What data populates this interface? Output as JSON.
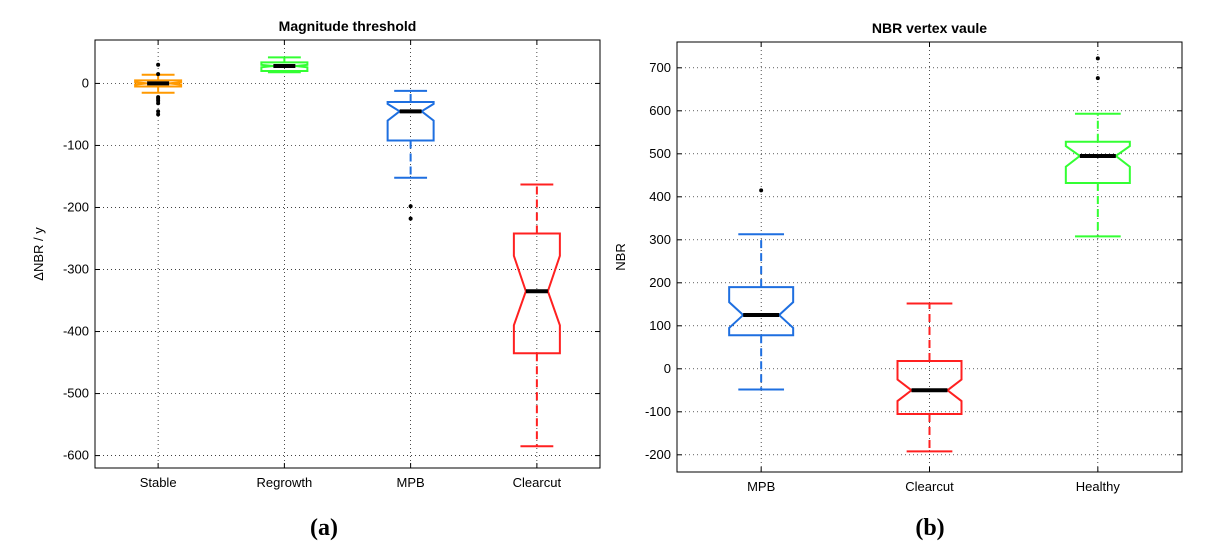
{
  "chart_data": [
    {
      "type": "boxplot",
      "panel_label": "(a)",
      "title": "Magnitude threshold",
      "xlabel": "",
      "ylabel": "ΔNBR / y",
      "ylim": [
        -620,
        70
      ],
      "yticks": [
        0,
        -100,
        -200,
        -300,
        -400,
        -500,
        -600
      ],
      "grid": true,
      "notched": true,
      "categories": [
        "Stable",
        "Regrowth",
        "MPB",
        "Clearcut"
      ],
      "boxes": [
        {
          "name": "Stable",
          "color": "#ff9900",
          "q1": -5,
          "median": 0,
          "q3": 5,
          "whisker_low": -15,
          "whisker_high": 14,
          "notch_low": -2,
          "notch_high": 2,
          "outliers": [
            30,
            15,
            -22,
            -25,
            -28,
            -32,
            -45,
            -50
          ]
        },
        {
          "name": "Regrowth",
          "color": "#33ff33",
          "q1": 20,
          "median": 28,
          "q3": 34,
          "whisker_low": 18,
          "whisker_high": 42,
          "notch_low": 26,
          "notch_high": 30,
          "outliers": []
        },
        {
          "name": "MPB",
          "color": "#1e6fe0",
          "q1": -92,
          "median": -45,
          "q3": -30,
          "whisker_low": -152,
          "whisker_high": -12,
          "notch_low": -60,
          "notch_high": -33,
          "outliers": [
            -198,
            -218
          ]
        },
        {
          "name": "Clearcut",
          "color": "#ff2020",
          "q1": -435,
          "median": -335,
          "q3": -242,
          "whisker_low": -585,
          "whisker_high": -163,
          "notch_low": -390,
          "notch_high": -278,
          "outliers": []
        }
      ]
    },
    {
      "type": "boxplot",
      "panel_label": "(b)",
      "title": "NBR vertex vaule",
      "xlabel": "",
      "ylabel": "NBR",
      "ylim": [
        -240,
        760
      ],
      "yticks": [
        700,
        600,
        500,
        400,
        300,
        200,
        100,
        0,
        -100,
        -200
      ],
      "grid": true,
      "notched": true,
      "categories": [
        "MPB",
        "Clearcut",
        "Healthy"
      ],
      "boxes": [
        {
          "name": "MPB",
          "color": "#1e6fe0",
          "q1": 78,
          "median": 125,
          "q3": 190,
          "whisker_low": -48,
          "whisker_high": 313,
          "notch_low": 95,
          "notch_high": 155,
          "outliers": [
            415
          ]
        },
        {
          "name": "Clearcut",
          "color": "#ff2020",
          "q1": -105,
          "median": -50,
          "q3": 18,
          "whisker_low": -192,
          "whisker_high": 152,
          "notch_low": -75,
          "notch_high": -25,
          "outliers": []
        },
        {
          "name": "Healthy",
          "color": "#33ff33",
          "q1": 432,
          "median": 495,
          "q3": 528,
          "whisker_low": 308,
          "whisker_high": 593,
          "notch_low": 470,
          "notch_high": 518,
          "outliers": [
            722,
            676
          ]
        }
      ]
    }
  ]
}
